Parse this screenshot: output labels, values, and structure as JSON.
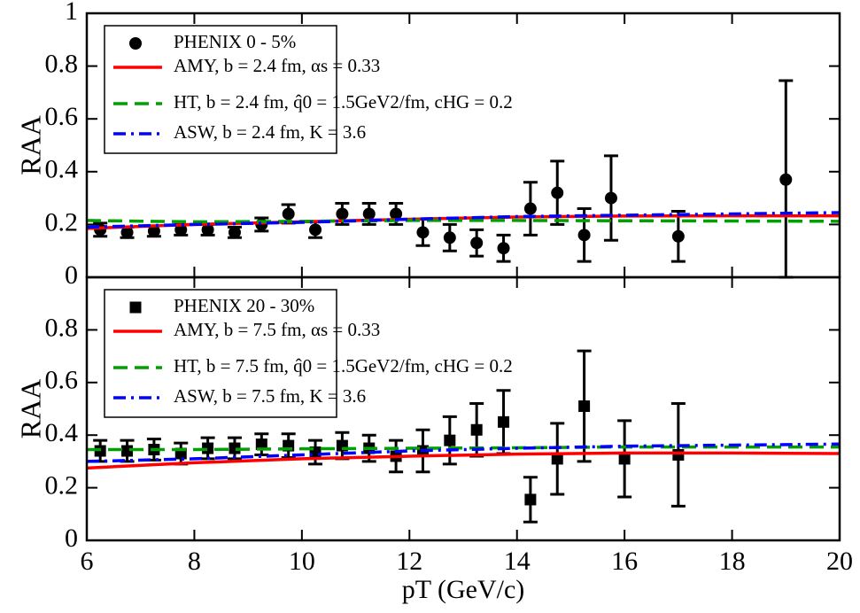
{
  "chart_data": [
    {
      "type": "line",
      "ylabel": "RAA",
      "xlim": [
        6,
        20
      ],
      "ylim": [
        0,
        1
      ],
      "yticks": [
        0,
        0.2,
        0.4,
        0.6,
        0.8,
        1
      ],
      "series": [
        {
          "name": "PHENIX 0 - 5%",
          "color": "#000000",
          "marker": "circle",
          "x": [
            6.25,
            6.75,
            7.25,
            7.75,
            8.25,
            8.75,
            9.25,
            9.75,
            10.25,
            10.75,
            11.25,
            11.75,
            12.25,
            12.75,
            13.25,
            13.75,
            14.25,
            14.75,
            15.25,
            15.75,
            17,
            19
          ],
          "values": [
            0.18,
            0.17,
            0.175,
            0.18,
            0.18,
            0.17,
            0.2,
            0.24,
            0.18,
            0.24,
            0.24,
            0.24,
            0.17,
            0.15,
            0.13,
            0.11,
            0.26,
            0.32,
            0.16,
            0.3,
            0.155,
            0.37
          ],
          "errors": [
            0.025,
            0.02,
            0.02,
            0.02,
            0.02,
            0.02,
            0.025,
            0.035,
            0.03,
            0.04,
            0.04,
            0.04,
            0.05,
            0.05,
            0.05,
            0.05,
            0.1,
            0.12,
            0.1,
            0.16,
            0.095,
            0.375
          ]
        },
        {
          "name": "AMY, b = 2.4 fm, αs = 0.33",
          "color": "#ff0000",
          "style": "solid",
          "x": [
            6,
            8,
            10,
            12,
            14,
            16,
            18,
            20
          ],
          "values": [
            0.185,
            0.2,
            0.21,
            0.22,
            0.228,
            0.232,
            0.233,
            0.233
          ]
        },
        {
          "name": "HT, b = 2.4 fm, q̂0 = 1.5GeV2/fm, cHG = 0.2",
          "color": "#00a000",
          "style": "dashed",
          "x": [
            6,
            8,
            10,
            12,
            14,
            16,
            18,
            20
          ],
          "values": [
            0.215,
            0.21,
            0.212,
            0.215,
            0.215,
            0.214,
            0.213,
            0.212
          ]
        },
        {
          "name": "ASW, b = 2.4 fm, K = 3.6",
          "color": "#0000ff",
          "style": "dashdot",
          "x": [
            6,
            8,
            10,
            12,
            14,
            16,
            18,
            20
          ],
          "values": [
            0.19,
            0.2,
            0.208,
            0.22,
            0.23,
            0.235,
            0.24,
            0.245
          ]
        }
      ]
    },
    {
      "type": "line",
      "ylabel": "RAA",
      "xlabel": "pT (GeV/c)",
      "xlim": [
        6,
        20
      ],
      "ylim": [
        0,
        1
      ],
      "xticks": [
        6,
        8,
        10,
        12,
        14,
        16,
        18,
        20
      ],
      "yticks": [
        0,
        0.2,
        0.4,
        0.6,
        0.8
      ],
      "series": [
        {
          "name": "PHENIX 20 - 30%",
          "color": "#000000",
          "marker": "square",
          "x": [
            6.25,
            6.75,
            7.25,
            7.75,
            8.25,
            8.75,
            9.25,
            9.75,
            10.25,
            10.75,
            11.25,
            11.75,
            12.25,
            12.75,
            13.25,
            13.75,
            14.25,
            14.75,
            15.25,
            16,
            17
          ],
          "values": [
            0.34,
            0.34,
            0.345,
            0.33,
            0.35,
            0.35,
            0.365,
            0.36,
            0.335,
            0.36,
            0.35,
            0.32,
            0.34,
            0.38,
            0.42,
            0.45,
            0.155,
            0.31,
            0.51,
            0.31,
            0.325
          ],
          "errors": [
            0.04,
            0.04,
            0.04,
            0.04,
            0.04,
            0.04,
            0.04,
            0.045,
            0.045,
            0.05,
            0.05,
            0.06,
            0.08,
            0.09,
            0.1,
            0.12,
            0.085,
            0.135,
            0.21,
            0.145,
            0.195
          ]
        },
        {
          "name": "AMY, b = 7.5 fm, αs = 0.33",
          "color": "#ff0000",
          "style": "solid",
          "x": [
            6,
            8,
            10,
            12,
            14,
            16,
            18,
            20
          ],
          "values": [
            0.275,
            0.295,
            0.31,
            0.32,
            0.328,
            0.332,
            0.332,
            0.33
          ]
        },
        {
          "name": "HT, b = 7.5 fm, q̂0 = 1.5GeV2/fm, cHG = 0.2",
          "color": "#00a000",
          "style": "dashed",
          "x": [
            6,
            8,
            10,
            12,
            14,
            16,
            18,
            20
          ],
          "values": [
            0.345,
            0.345,
            0.348,
            0.35,
            0.352,
            0.355,
            0.355,
            0.355
          ]
        },
        {
          "name": "ASW, b = 7.5 fm, K = 3.6",
          "color": "#0000ff",
          "style": "dashdot",
          "x": [
            6,
            8,
            10,
            12,
            14,
            16,
            18,
            20
          ],
          "values": [
            0.3,
            0.31,
            0.325,
            0.34,
            0.35,
            0.358,
            0.362,
            0.366
          ]
        }
      ]
    }
  ]
}
